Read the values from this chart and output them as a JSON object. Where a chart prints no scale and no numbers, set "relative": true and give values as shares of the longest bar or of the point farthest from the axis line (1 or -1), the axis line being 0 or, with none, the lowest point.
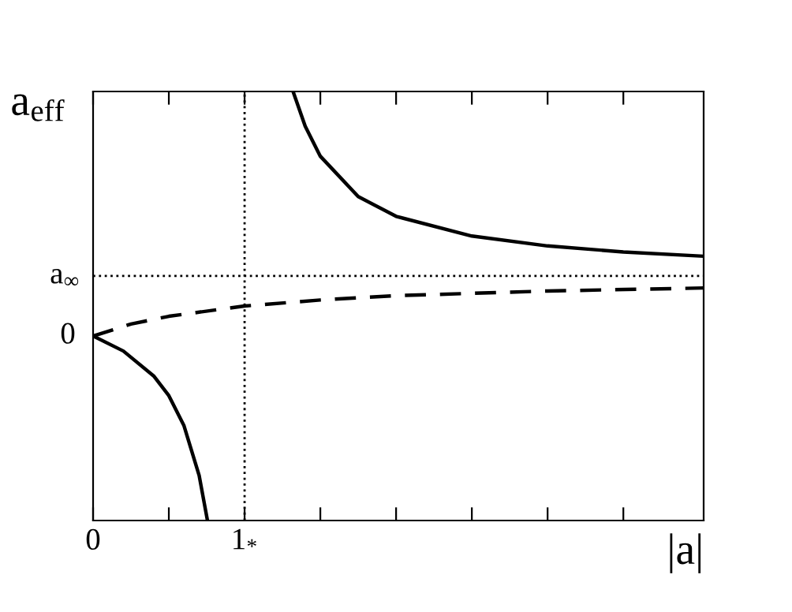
{
  "chart_data": {
    "type": "line",
    "relative": true,
    "xlabel": "|a|",
    "ylabel": "a$_{eff}$",
    "series": [
      {
        "color": "#000000",
        "line_style": "solid",
        "x": [
          1.32,
          1.4,
          1.5,
          1.75,
          2,
          2.5,
          3,
          3.5,
          4.03
        ],
        "values": [
          1.0,
          0.919,
          0.849,
          0.755,
          0.709,
          0.663,
          0.64,
          0.626,
          0.616
        ]
      },
      {
        "color": "#000000",
        "line_style": "solid",
        "x": [
          0,
          0.2,
          0.4,
          0.5,
          0.6,
          0.7,
          0.755
        ],
        "values": [
          0.43,
          0.395,
          0.337,
          0.291,
          0.221,
          0.105,
          0
        ]
      },
      {
        "color": "#000000",
        "line_style": "dashed",
        "x": [
          0,
          0.25,
          0.5,
          1,
          1.5,
          2,
          3,
          4.03
        ],
        "values": [
          0.43,
          0.458,
          0.476,
          0.5,
          0.514,
          0.524,
          0.535,
          0.542
        ]
      }
    ],
    "xlim": [
      0,
      4.03
    ],
    "xticks": [
      {
        "value": 0,
        "label": "0"
      },
      {
        "value": 0.5,
        "label": null
      },
      {
        "value": 1,
        "label": "1$_{*}$"
      },
      {
        "value": 1.5,
        "label": null
      },
      {
        "value": 2,
        "label": null
      },
      {
        "value": 2.5,
        "label": null
      },
      {
        "value": 3,
        "label": null
      },
      {
        "value": 3.5,
        "label": null
      }
    ],
    "annotations": [
      {
        "text": "0",
        "x": 0,
        "y": 0.43
      }
    ],
    "ref_lines": [
      {
        "axis": "x",
        "value": 1,
        "line_style": "dotted",
        "color": "#000000"
      },
      {
        "axis": "y",
        "value": 0.57,
        "line_style": "dotted",
        "color": "#000000",
        "label": "a$_{∞}$"
      }
    ],
    "marker": "none",
    "grid": false,
    "legend": false
  }
}
